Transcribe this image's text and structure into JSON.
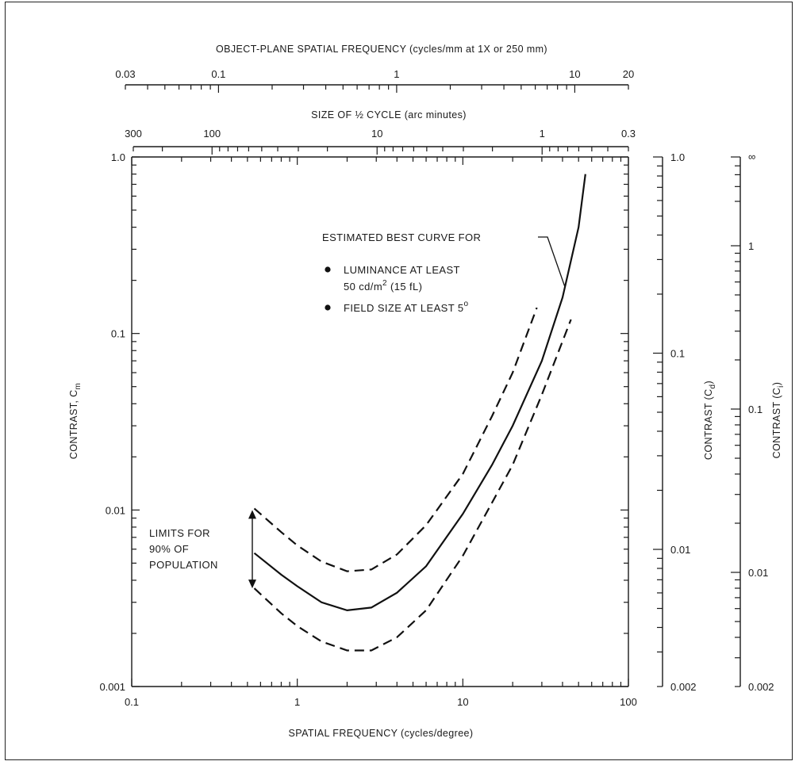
{
  "chart_data": {
    "type": "line",
    "xlabel": "SPATIAL FREQUENCY (cycles/degree)",
    "ylabel": "CONTRAST, C",
    "ylabel_sub": "m",
    "x_scale": "log",
    "y_scale": "log",
    "xlim": [
      0.1,
      100
    ],
    "ylim": [
      0.001,
      1.0
    ],
    "x_ticks": [
      "0.1",
      "1",
      "10",
      "100"
    ],
    "y_ticks": [
      "1.0",
      "0.1",
      "0.01",
      "0.001"
    ],
    "grid": false,
    "top_axis_1": {
      "label": "OBJECT-PLANE SPATIAL FREQUENCY (cycles/mm at 1X or 250 mm)",
      "ticks": [
        {
          "value": 0.03,
          "label": "0.03"
        },
        {
          "value": 0.1,
          "label": "0.1"
        },
        {
          "value": 1,
          "label": "1"
        },
        {
          "value": 10,
          "label": "10"
        },
        {
          "value": 20,
          "label": "20"
        }
      ]
    },
    "top_axis_2": {
      "label": "SIZE OF ½ CYCLE (arc minutes)",
      "ticks": [
        {
          "value": 300,
          "label": "300"
        },
        {
          "value": 100,
          "label": "100"
        },
        {
          "value": 10,
          "label": "10"
        },
        {
          "value": 1,
          "label": "1"
        },
        {
          "value": 0.3,
          "label": "0.3"
        }
      ]
    },
    "right_axis_d": {
      "label": "CONTRAST (C",
      "label_sub": "d",
      "label_end": ")",
      "ticks": [
        {
          "value": 1.0,
          "label": "1.0"
        },
        {
          "value": 0.1,
          "label": "0.1"
        },
        {
          "value": 0.01,
          "label": "0.01"
        },
        {
          "value": 0.002,
          "label": "0.002"
        }
      ]
    },
    "right_axis_i": {
      "label": "CONTRAST (C",
      "label_sub": "i",
      "label_end": ")",
      "ticks": [
        {
          "value": "inf",
          "label": "∞"
        },
        {
          "value": 1,
          "label": "1"
        },
        {
          "value": 0.1,
          "label": "0.1"
        },
        {
          "value": 0.01,
          "label": "0.01"
        },
        {
          "value": 0.002,
          "label": "0.002"
        }
      ]
    },
    "series": [
      {
        "name": "ESTIMATED BEST CURVE",
        "style": "solid",
        "x": [
          0.55,
          0.8,
          1.0,
          1.4,
          2.0,
          2.8,
          4.0,
          6.0,
          10,
          15,
          20,
          30,
          40,
          50,
          55
        ],
        "y": [
          0.0057,
          0.0043,
          0.0037,
          0.003,
          0.0027,
          0.0028,
          0.0034,
          0.0048,
          0.0095,
          0.018,
          0.03,
          0.07,
          0.16,
          0.4,
          0.8
        ]
      },
      {
        "name": "UPPER LIMIT",
        "style": "dashed",
        "x": [
          0.55,
          0.8,
          1.0,
          1.4,
          2.0,
          2.8,
          4.0,
          6.0,
          10,
          15,
          20,
          28
        ],
        "y": [
          0.0102,
          0.0075,
          0.0063,
          0.0051,
          0.0045,
          0.0046,
          0.0056,
          0.0082,
          0.016,
          0.034,
          0.06,
          0.14
        ]
      },
      {
        "name": "LOWER LIMIT",
        "style": "dashed",
        "x": [
          0.55,
          0.8,
          1.0,
          1.4,
          2.0,
          2.8,
          4.0,
          6.0,
          10,
          15,
          20,
          30,
          45
        ],
        "y": [
          0.0036,
          0.0026,
          0.0022,
          0.0018,
          0.0016,
          0.0016,
          0.0019,
          0.0027,
          0.0055,
          0.011,
          0.018,
          0.045,
          0.12
        ]
      }
    ],
    "annotations": {
      "best_curve_title": "ESTIMATED BEST CURVE FOR",
      "bullet1_line1": "LUMINANCE AT LEAST",
      "bullet1_line2": "50 cd/m",
      "bullet1_sup": "2",
      "bullet1_tail": "(15 fL)",
      "bullet2": "FIELD SIZE AT LEAST 5",
      "bullet2_sup": "o",
      "limits_line1": "LIMITS FOR",
      "limits_line2": "90% OF",
      "limits_line3": "POPULATION"
    }
  }
}
